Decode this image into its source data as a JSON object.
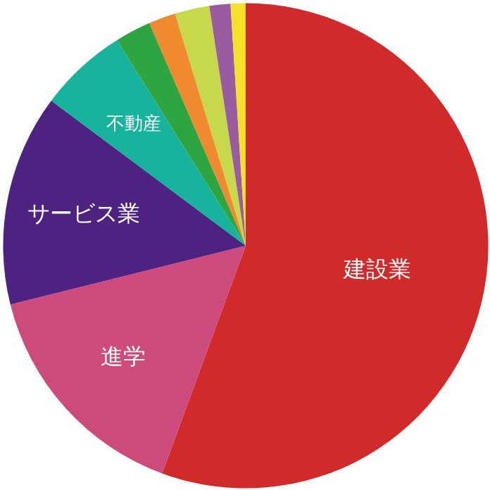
{
  "chart_data": {
    "type": "pie",
    "categories": [
      "建設業",
      "進学",
      "サービス業",
      "不動産",
      null,
      null,
      null,
      null,
      null
    ],
    "values": [
      55.6,
      15.5,
      14.1,
      5.9,
      2.4,
      1.8,
      2.3,
      1.4,
      1.0
    ],
    "colors": [
      "#d12a2a",
      "#cc4a7c",
      "#4e2280",
      "#17b39c",
      "#2ea540",
      "#f08a30",
      "#c7d84a",
      "#9b5ba0",
      "#f5e02a"
    ]
  }
}
